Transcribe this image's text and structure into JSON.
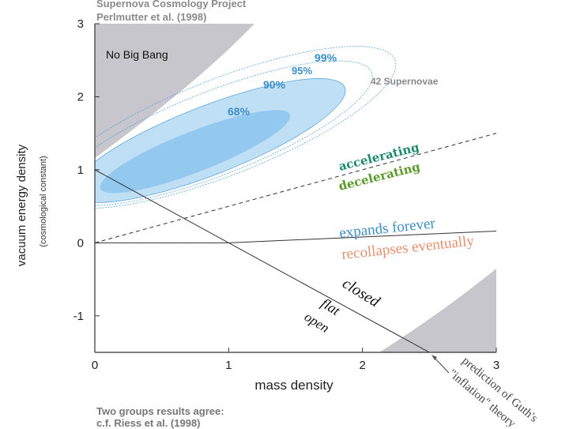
{
  "header": {
    "line1": "Supernova Cosmology Project",
    "line2": "Perlmutter et al. (1998)"
  },
  "footer": {
    "line1": "Two groups results agree:",
    "line2": "c.f. Riess et al. (1998)"
  },
  "chart_data": {
    "type": "line",
    "title": "",
    "xlabel": "mass density",
    "ylabel": "vacuum energy density",
    "ylabel_sub": "(cosmological constant)",
    "xlim": [
      0,
      3
    ],
    "ylim": [
      -1.5,
      3
    ],
    "x_ticks": [
      "0",
      "1",
      "2",
      "3"
    ],
    "y_ticks": [
      "3",
      "2",
      "1",
      "0",
      "-1"
    ],
    "grid": false,
    "lines": [
      {
        "name": "accelerating / decelerating boundary",
        "x": [
          0,
          3
        ],
        "y": [
          0,
          1.5
        ],
        "style": "dashed"
      },
      {
        "name": "closed / open (flat)",
        "x": [
          0,
          2.55
        ],
        "y": [
          1,
          -1.55
        ],
        "style": "solid"
      },
      {
        "name": "expands forever / recollapses eventually",
        "x": [
          0,
          1,
          3
        ],
        "y": [
          0,
          0,
          0.16
        ],
        "style": "solid"
      }
    ],
    "confidence_regions": [
      {
        "label": "68%",
        "center": [
          0.75,
          1.25
        ],
        "semi_major": 0.8,
        "semi_minor": 0.16
      },
      {
        "label": "90%",
        "center": [
          0.85,
          1.4
        ],
        "semi_major": 1.15,
        "semi_minor": 0.27
      },
      {
        "label": "95%",
        "center": [
          0.9,
          1.5
        ],
        "semi_major": 1.32,
        "semi_minor": 0.33
      },
      {
        "label": "99%",
        "center": [
          0.95,
          1.58
        ],
        "semi_major": 1.46,
        "semi_minor": 0.38
      }
    ],
    "shaded_regions": [
      "No Big Bang",
      "lower-right excluded region"
    ],
    "annotations": {
      "no_big_bang": "No Big Bang",
      "supernovae": "42 Supernovae",
      "accelerating": "accelerating",
      "decelerating": "decelerating",
      "expands": "expands forever",
      "recollapses": "recollapses eventually",
      "closed": "closed",
      "flat": "flat",
      "open": "open",
      "inflation": "prediction of Guth's",
      "inflation2": "\"inflation\" theory",
      "c68": "68%",
      "c90": "90%",
      "c95": "95%",
      "c99": "99%"
    },
    "colors": {
      "confidence_fill": "#b9dcf5",
      "confidence_inner": "#8ec6ee",
      "contour_line": "#4a9fe0",
      "shade": "#c6c6cc",
      "accelerating": "#1f8a6a",
      "decelerating": "#5a9a2a",
      "expands": "#3b8ec8",
      "recollapses": "#e8906e",
      "geometry_text": "#111111"
    }
  }
}
